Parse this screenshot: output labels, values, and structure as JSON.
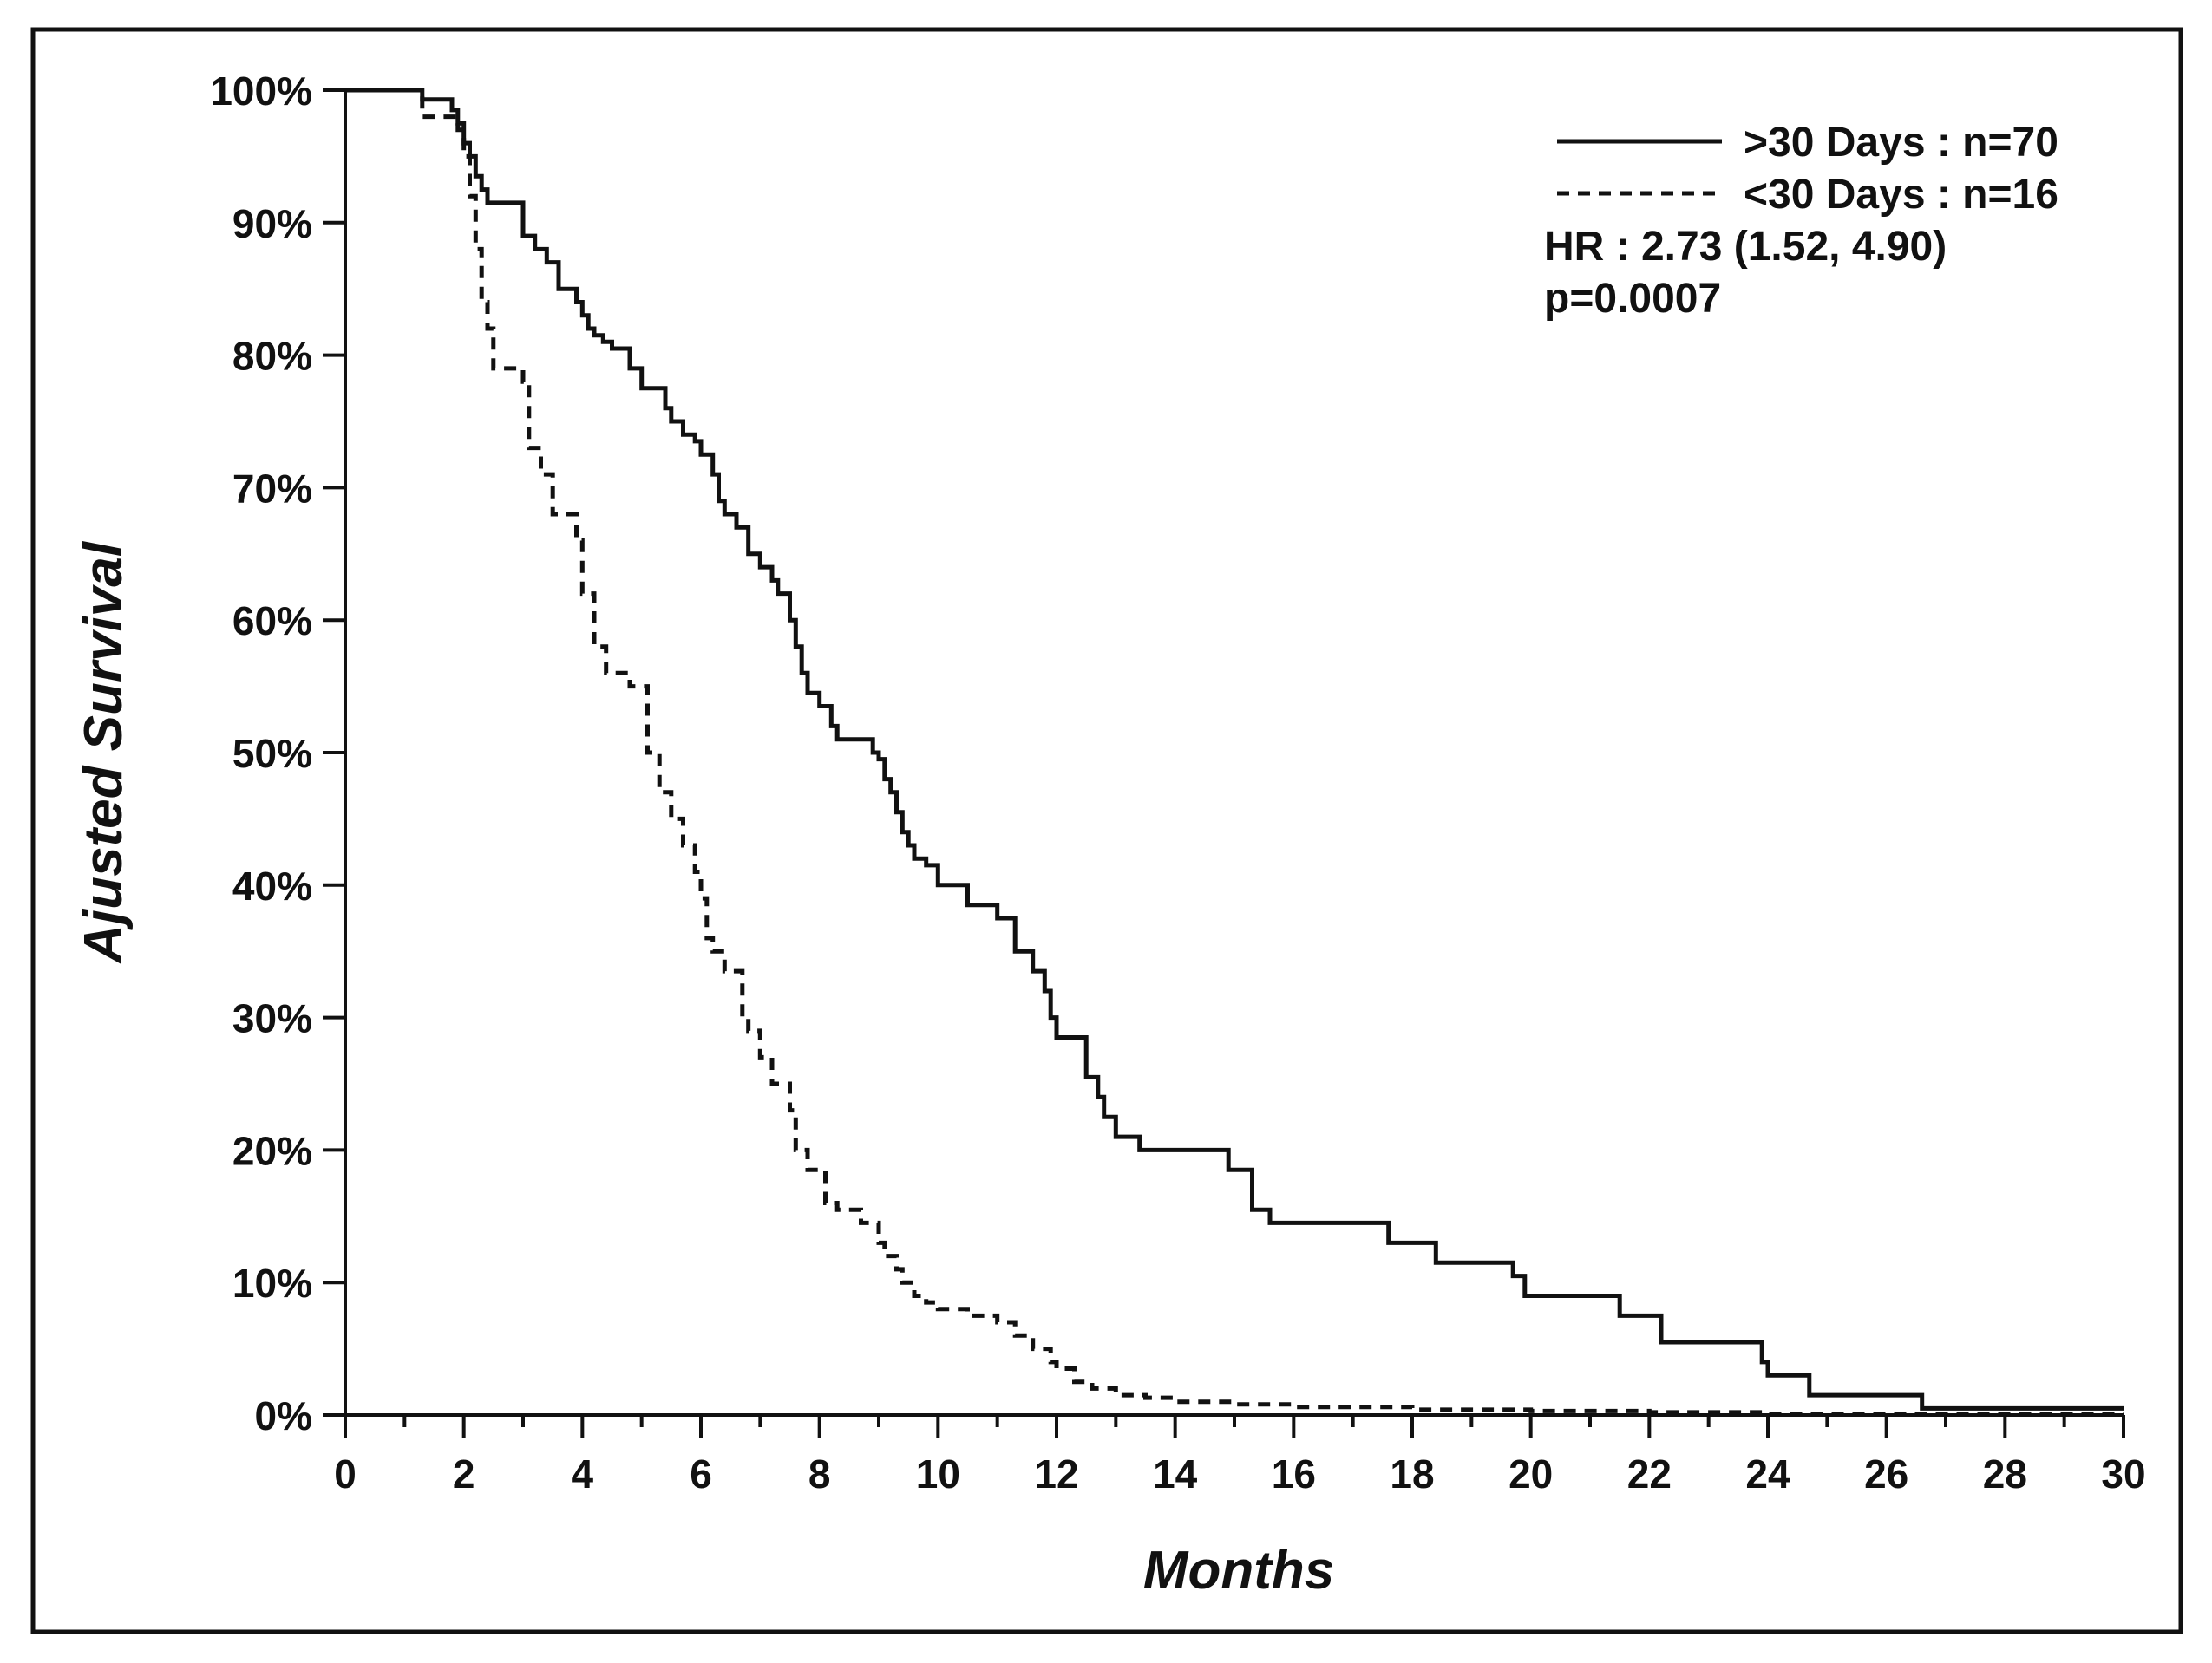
{
  "chart_data": {
    "type": "line",
    "title": "",
    "xlabel": "Months",
    "ylabel": "Ajusted Survival",
    "xlim": [
      0,
      30
    ],
    "ylim": [
      0,
      100
    ],
    "x_ticks": [
      0,
      2,
      4,
      6,
      8,
      10,
      12,
      14,
      16,
      18,
      20,
      22,
      24,
      26,
      28,
      30
    ],
    "x_tick_labels": [
      "0",
      "2",
      "4",
      "6",
      "8",
      "10",
      "12",
      "14",
      "16",
      "18",
      "20",
      "22",
      "24",
      "26",
      "28",
      "30"
    ],
    "y_ticks": [
      0,
      10,
      20,
      30,
      40,
      50,
      60,
      70,
      80,
      90,
      100
    ],
    "y_tick_labels": [
      "0%",
      "10%",
      "20%",
      "30%",
      "40%",
      "50%",
      "60%",
      "70%",
      "80%",
      "90%",
      "100%"
    ],
    "grid": false,
    "legend_position": "top-right",
    "step": true,
    "series": [
      {
        "name": ">30 Days : n=70",
        "line_style": "solid",
        "color": "#111111",
        "x": [
          0,
          1.3,
          1.8,
          1.9,
          2.0,
          2.1,
          2.2,
          2.3,
          2.4,
          2.5,
          2.6,
          3.0,
          3.2,
          3.4,
          3.6,
          3.9,
          4.0,
          4.1,
          4.2,
          4.35,
          4.5,
          4.8,
          5.0,
          5.1,
          5.4,
          5.5,
          5.7,
          5.9,
          6.0,
          6.2,
          6.3,
          6.4,
          6.6,
          6.8,
          7.0,
          7.2,
          7.3,
          7.5,
          7.6,
          7.7,
          7.8,
          8.0,
          8.2,
          8.3,
          8.9,
          9.0,
          9.1,
          9.2,
          9.3,
          9.4,
          9.5,
          9.6,
          9.8,
          10.0,
          10.5,
          11.0,
          11.3,
          11.6,
          11.8,
          11.9,
          12.0,
          12.5,
          12.7,
          12.8,
          13.0,
          13.4,
          14.9,
          15.3,
          15.6,
          17.6,
          18.4,
          19.7,
          19.9,
          21.5,
          22.2,
          23.9,
          24.0,
          24.7,
          26.6,
          30.0
        ],
        "y": [
          100,
          99.3,
          98.5,
          97.5,
          96.0,
          95.0,
          93.5,
          92.5,
          91.5,
          91.5,
          91.5,
          89.0,
          88.0,
          87.0,
          85.0,
          84.0,
          83.0,
          82.0,
          81.5,
          81.0,
          80.5,
          79.0,
          77.5,
          77.5,
          76.0,
          75.0,
          74.0,
          73.5,
          72.5,
          71.0,
          69.0,
          68.0,
          67.0,
          65.0,
          64.0,
          63.0,
          62.0,
          60.0,
          58.0,
          56.0,
          54.5,
          53.5,
          52.0,
          51.0,
          50.0,
          49.5,
          48.0,
          47.0,
          45.5,
          44.0,
          43.0,
          42.0,
          41.5,
          40.0,
          38.5,
          37.5,
          35.0,
          33.5,
          32.0,
          30.0,
          28.5,
          25.5,
          24.0,
          22.5,
          21.0,
          20.0,
          18.5,
          15.5,
          14.5,
          13.0,
          11.5,
          10.5,
          9.0,
          7.5,
          5.5,
          4.0,
          3.0,
          1.5,
          0.5,
          0.5
        ]
      },
      {
        "name": "<30 Days : n=16",
        "line_style": "dashed",
        "color": "#111111",
        "x": [
          0,
          1.3,
          1.9,
          2.0,
          2.1,
          2.2,
          2.3,
          2.4,
          2.5,
          3.0,
          3.1,
          3.3,
          3.5,
          3.9,
          4.0,
          4.2,
          4.4,
          4.8,
          5.1,
          5.3,
          5.5,
          5.7,
          5.9,
          6.0,
          6.1,
          6.2,
          6.4,
          6.7,
          6.8,
          7.0,
          7.2,
          7.5,
          7.6,
          7.8,
          8.1,
          8.3,
          8.7,
          9.0,
          9.1,
          9.3,
          9.4,
          9.6,
          9.8,
          10.0,
          10.5,
          11.0,
          11.3,
          11.6,
          11.9,
          12.0,
          12.3,
          12.6,
          13.0,
          13.5,
          14.0,
          15.0,
          16.0,
          18.0,
          20.0,
          22.0,
          24.0,
          26.0,
          28.0,
          30.0
        ],
        "y": [
          100,
          98.0,
          97.0,
          95.0,
          92.0,
          88.0,
          84.0,
          82.0,
          79.0,
          78.0,
          73.0,
          71.0,
          68.0,
          66.0,
          62.0,
          58.0,
          56.0,
          55.0,
          50.0,
          47.0,
          45.0,
          43.0,
          41.0,
          39.0,
          36.0,
          35.0,
          33.5,
          30.0,
          29.0,
          27.0,
          25.0,
          23.0,
          20.0,
          18.5,
          16.0,
          15.5,
          14.5,
          13.0,
          12.0,
          11.0,
          10.0,
          9.0,
          8.5,
          8.0,
          7.5,
          7.0,
          6.0,
          5.0,
          4.0,
          3.5,
          2.5,
          2.0,
          1.5,
          1.3,
          1.0,
          0.8,
          0.6,
          0.4,
          0.3,
          0.2,
          0.1,
          0.1,
          0.1,
          0.1
        ]
      }
    ]
  },
  "annotations": {
    "hr": "HR : 2.73 (1.52, 4.90)",
    "p_value": "p=0.0007"
  }
}
